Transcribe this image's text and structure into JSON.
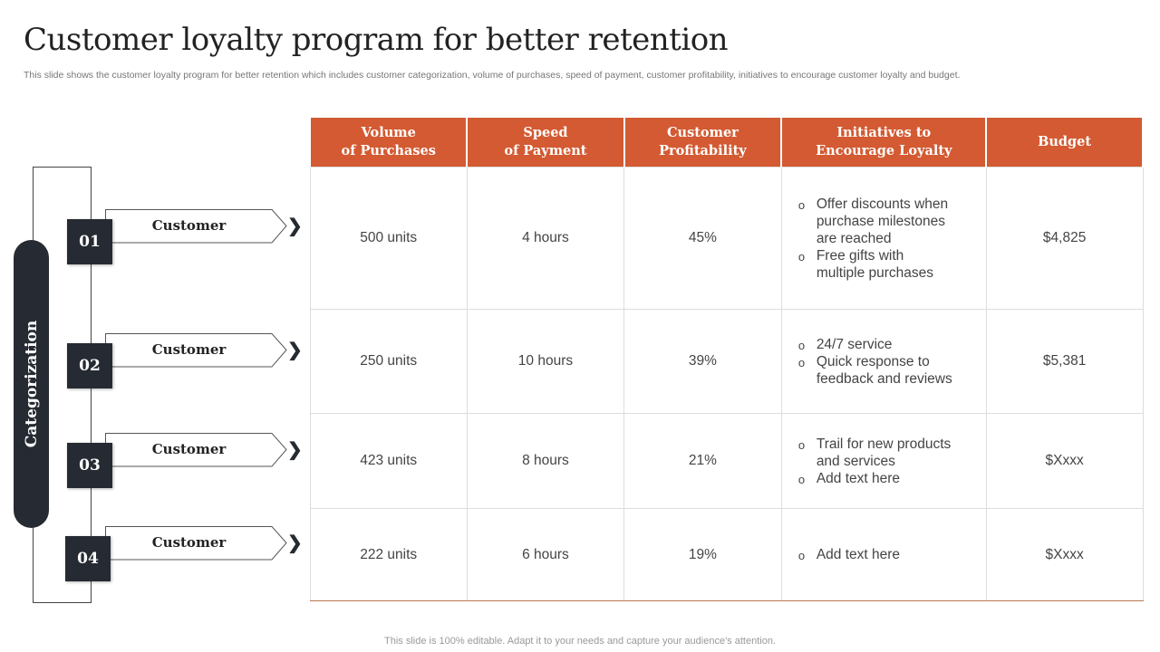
{
  "title": "Customer loyalty program for better retention",
  "subtitle": "This slide shows the customer loyalty program for better retention which includes customer categorization, volume of purchases, speed of payment, customer profitability, initiatives to encourage customer loyalty and budget.",
  "footer": "This slide is 100% editable. Adapt it to your needs and capture your audience's attention.",
  "colors": {
    "accent": "#D35A32",
    "dark": "#262B33"
  },
  "categorization": {
    "label": "Categorization",
    "items": [
      {
        "number": "01",
        "label": "Customer"
      },
      {
        "number": "02",
        "label": "Customer"
      },
      {
        "number": "03",
        "label": "Customer"
      },
      {
        "number": "04",
        "label": "Customer"
      }
    ]
  },
  "table": {
    "headers": [
      [
        "Volume",
        "of Purchases"
      ],
      [
        "Speed",
        "of Payment"
      ],
      [
        "Customer",
        "Profitability"
      ],
      [
        "Initiatives to",
        "Encourage Loyalty"
      ],
      [
        "Budget",
        ""
      ]
    ],
    "rows": [
      {
        "volume": "500 units",
        "speed": "4 hours",
        "profit": "45%",
        "initiatives": [
          "Offer discounts when purchase milestones are reached",
          "Free gifts with multiple purchases"
        ],
        "budget": "$4,825"
      },
      {
        "volume": "250 units",
        "speed": "10 hours",
        "profit": "39%",
        "initiatives": [
          "24/7 service",
          "Quick response to feedback and reviews"
        ],
        "budget": "$5,381"
      },
      {
        "volume": "423 units",
        "speed": "8 hours",
        "profit": "21%",
        "initiatives": [
          "Trail for new products and services",
          "Add text here"
        ],
        "budget": "$Xxxx"
      },
      {
        "volume": "222 units",
        "speed": "6 hours",
        "profit": "19%",
        "initiatives": [
          "Add text here"
        ],
        "budget": "$Xxxx"
      }
    ]
  }
}
